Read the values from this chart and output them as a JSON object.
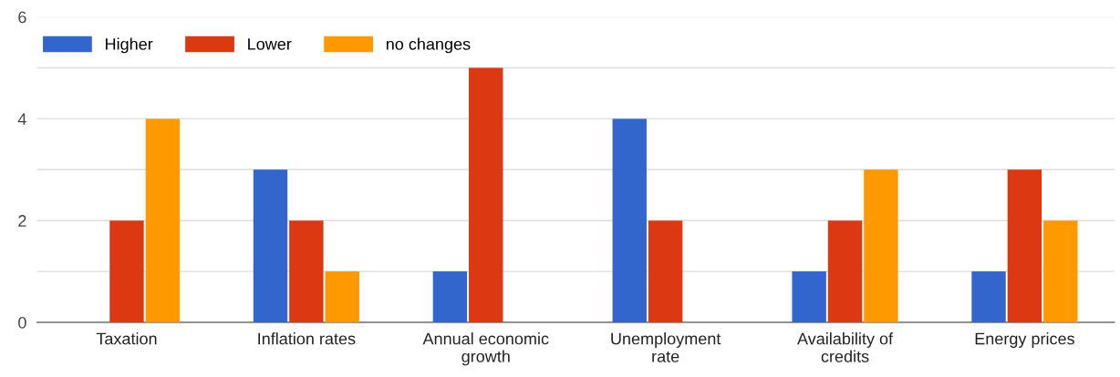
{
  "chart_data": {
    "type": "bar",
    "categories": [
      "Taxation",
      "Inflation rates",
      "Annual economic\ngrowth",
      "Unemployment\nrate",
      "Availability of\ncredits",
      "Energy prices"
    ],
    "series": [
      {
        "name": "Higher",
        "color": "#3366cc",
        "values": [
          0,
          3,
          1,
          4,
          1,
          1
        ]
      },
      {
        "name": "Lower",
        "color": "#dc3912",
        "values": [
          2,
          2,
          5,
          2,
          2,
          3
        ]
      },
      {
        "name": "no changes",
        "color": "#ff9900",
        "values": [
          4,
          1,
          0,
          0,
          3,
          2
        ]
      }
    ],
    "ylim": [
      0,
      6
    ],
    "yticks": [
      0,
      {
        "value": 1,
        "label": null
      },
      2,
      {
        "value": 3,
        "label": null
      },
      4,
      {
        "value": 5,
        "label": null
      },
      6
    ],
    "grid": "y",
    "legend": "top left"
  }
}
